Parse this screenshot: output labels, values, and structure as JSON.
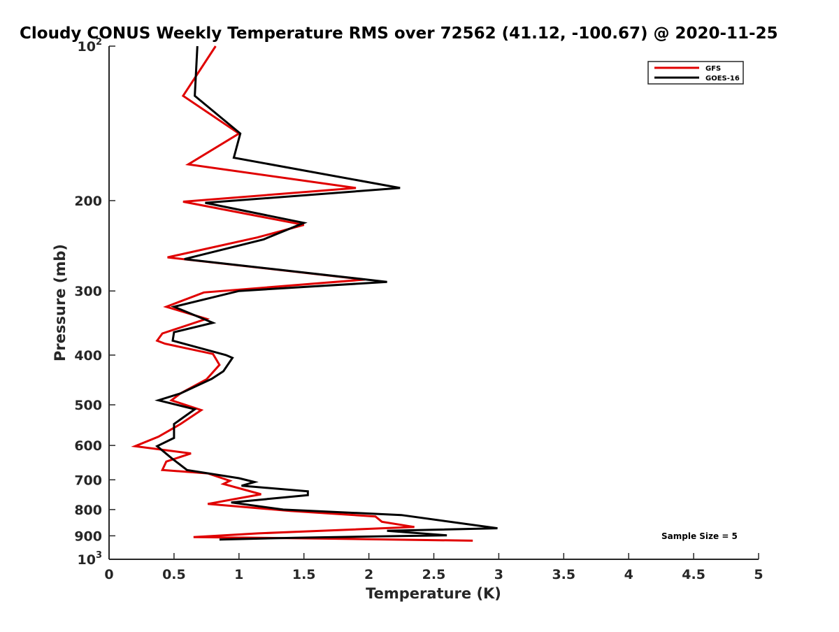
{
  "chart_data": {
    "type": "line",
    "title": "Cloudy CONUS Weekly Temperature RMS over 72562 (41.12, -100.67) @ 2020-11-25",
    "xlabel": "Temperature (K)",
    "ylabel": "Pressure (mb)",
    "xlim": [
      0,
      5
    ],
    "ylim": [
      1000,
      100
    ],
    "y_scale": "log",
    "x_ticks": [
      0,
      0.5,
      1,
      1.5,
      2,
      2.5,
      3,
      3.5,
      4,
      4.5,
      5
    ],
    "x_tick_labels": [
      "0",
      "0.5",
      "1",
      "1.5",
      "2",
      "2.5",
      "3",
      "3.5",
      "4",
      "4.5",
      "5"
    ],
    "y_ticks": [
      200,
      300,
      400,
      500,
      600,
      700,
      800,
      900
    ],
    "y_tick_labels": [
      "200",
      "300",
      "400",
      "500",
      "600",
      "700",
      "800",
      "900"
    ],
    "y_tick_edges": [
      {
        "value": 100,
        "base": "10",
        "exp": "2"
      },
      {
        "value": 1000,
        "base": "10",
        "exp": "3"
      }
    ],
    "legend_position": "top-right",
    "annotation": "Sample Size = 5",
    "grid": false,
    "series": [
      {
        "name": "GFS",
        "color": "#e00000",
        "points": [
          [
            0.82,
            100
          ],
          [
            0.57,
            125
          ],
          [
            1.0,
            148
          ],
          [
            0.61,
            170
          ],
          [
            1.9,
            189
          ],
          [
            0.57,
            201
          ],
          [
            1.5,
            223
          ],
          [
            1.14,
            236
          ],
          [
            0.45,
            258
          ],
          [
            1.97,
            285
          ],
          [
            0.73,
            302
          ],
          [
            0.44,
            322
          ],
          [
            0.75,
            340
          ],
          [
            0.41,
            363
          ],
          [
            0.37,
            375
          ],
          [
            0.43,
            380
          ],
          [
            0.8,
            398
          ],
          [
            0.85,
            418
          ],
          [
            0.75,
            446
          ],
          [
            0.55,
            475
          ],
          [
            0.48,
            490
          ],
          [
            0.71,
            512
          ],
          [
            0.55,
            545
          ],
          [
            0.38,
            577
          ],
          [
            0.2,
            602
          ],
          [
            0.63,
            622
          ],
          [
            0.44,
            645
          ],
          [
            0.41,
            670
          ],
          [
            0.76,
            680
          ],
          [
            0.93,
            703
          ],
          [
            0.88,
            713
          ],
          [
            1.17,
            747
          ],
          [
            0.76,
            780
          ],
          [
            1.4,
            805
          ],
          [
            2.05,
            825
          ],
          [
            2.1,
            845
          ],
          [
            2.35,
            865
          ],
          [
            1.15,
            890
          ],
          [
            0.65,
            905
          ],
          [
            1.75,
            912
          ],
          [
            2.8,
            920
          ]
        ]
      },
      {
        "name": "GOES-16",
        "color": "#000000",
        "points": [
          [
            0.68,
            100
          ],
          [
            0.66,
            125
          ],
          [
            1.01,
            148
          ],
          [
            0.96,
            165
          ],
          [
            2.24,
            189
          ],
          [
            0.74,
            202
          ],
          [
            1.5,
            221
          ],
          [
            1.19,
            238
          ],
          [
            0.58,
            260
          ],
          [
            2.14,
            288
          ],
          [
            1.0,
            300
          ],
          [
            0.5,
            322
          ],
          [
            0.8,
            346
          ],
          [
            0.5,
            361
          ],
          [
            0.49,
            375
          ],
          [
            0.9,
            400
          ],
          [
            0.95,
            405
          ],
          [
            0.88,
            430
          ],
          [
            0.79,
            445
          ],
          [
            0.55,
            475
          ],
          [
            0.38,
            490
          ],
          [
            0.66,
            510
          ],
          [
            0.5,
            545
          ],
          [
            0.5,
            580
          ],
          [
            0.37,
            602
          ],
          [
            0.48,
            635
          ],
          [
            0.6,
            670
          ],
          [
            1.0,
            695
          ],
          [
            1.12,
            707
          ],
          [
            1.02,
            719
          ],
          [
            1.53,
            737
          ],
          [
            1.53,
            750
          ],
          [
            0.94,
            775
          ],
          [
            1.34,
            800
          ],
          [
            2.25,
            820
          ],
          [
            2.99,
            870
          ],
          [
            2.14,
            880
          ],
          [
            2.6,
            898
          ],
          [
            1.43,
            908
          ],
          [
            0.85,
            915
          ]
        ]
      }
    ]
  }
}
